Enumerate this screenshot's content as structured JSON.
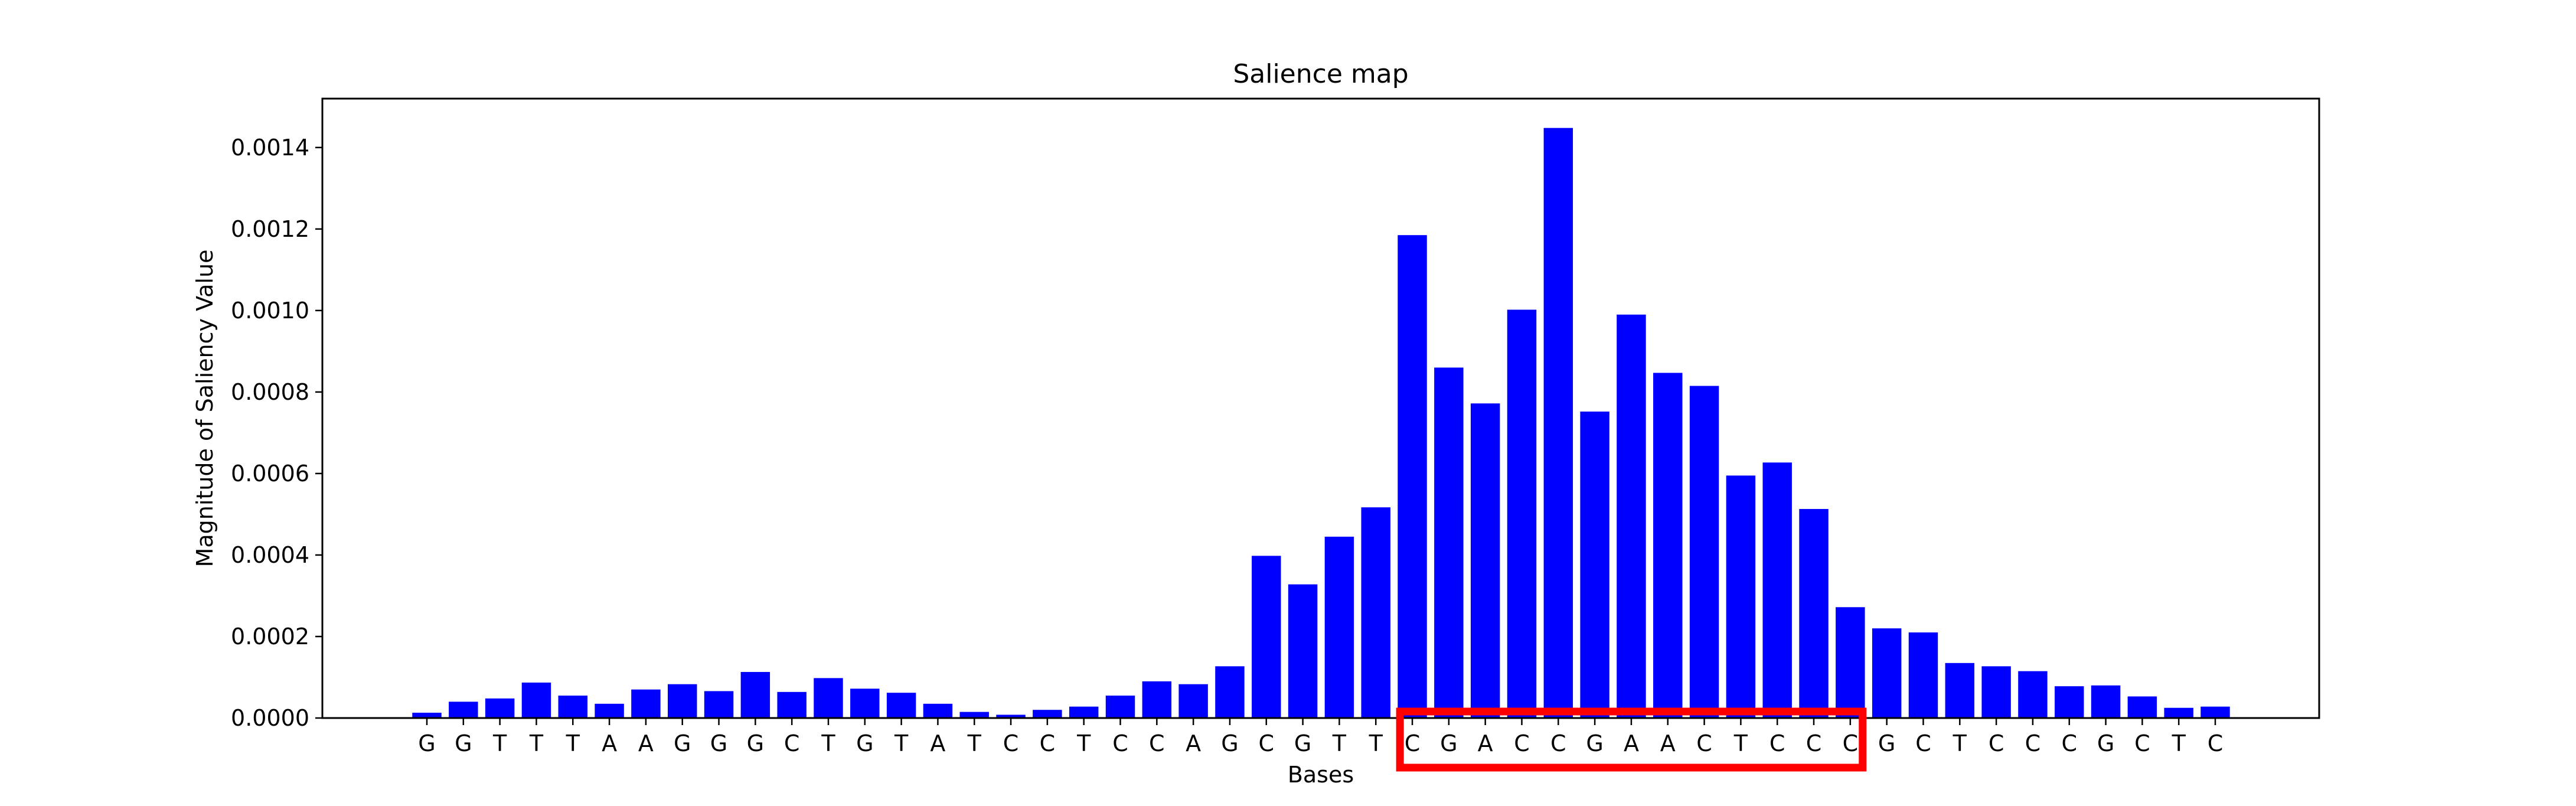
{
  "chart_data": {
    "type": "bar",
    "title": "Salience map",
    "xlabel": "Bases",
    "ylabel": "Magnitude of Saliency Value",
    "ylim": [
      0,
      0.00152
    ],
    "yticks": [
      "0.0000",
      "0.0002",
      "0.0004",
      "0.0006",
      "0.0008",
      "0.0010",
      "0.0012",
      "0.0014"
    ],
    "ytick_values": [
      0,
      0.0002,
      0.0004,
      0.0006,
      0.0008,
      0.001,
      0.0012,
      0.0014
    ],
    "bar_color": "#0000ff",
    "highlight_color": "#ff0000",
    "grid": false,
    "categories": [
      "G",
      "G",
      "T",
      "T",
      "T",
      "A",
      "A",
      "G",
      "G",
      "G",
      "C",
      "T",
      "G",
      "T",
      "A",
      "T",
      "C",
      "C",
      "T",
      "C",
      "C",
      "A",
      "G",
      "C",
      "G",
      "T",
      "T",
      "C",
      "G",
      "A",
      "C",
      "C",
      "G",
      "A",
      "A",
      "C",
      "T",
      "C",
      "C",
      "C",
      "G",
      "C",
      "T",
      "C",
      "C",
      "C",
      "G",
      "C",
      "T",
      "C"
    ],
    "values": [
      1.3e-05,
      4e-05,
      4.8e-05,
      8.7e-05,
      5.5e-05,
      3.5e-05,
      7e-05,
      8.3e-05,
      6.6e-05,
      0.000113,
      6.4e-05,
      9.8e-05,
      7.2e-05,
      6.2e-05,
      3.5e-05,
      1.5e-05,
      8e-06,
      2e-05,
      2.8e-05,
      5.5e-05,
      9e-05,
      8.3e-05,
      0.000127,
      0.000398,
      0.000328,
      0.000445,
      0.000517,
      0.001185,
      0.00086,
      0.000772,
      0.001002,
      0.001448,
      0.000752,
      0.00099,
      0.000847,
      0.000815,
      0.000595,
      0.000627,
      0.000513,
      0.000272,
      0.00022,
      0.00021,
      0.000135,
      0.000127,
      0.000115,
      7.8e-05,
      8e-05,
      5.3e-05,
      2.5e-05,
      2.8e-05
    ],
    "highlight_range": [
      27,
      39
    ]
  }
}
